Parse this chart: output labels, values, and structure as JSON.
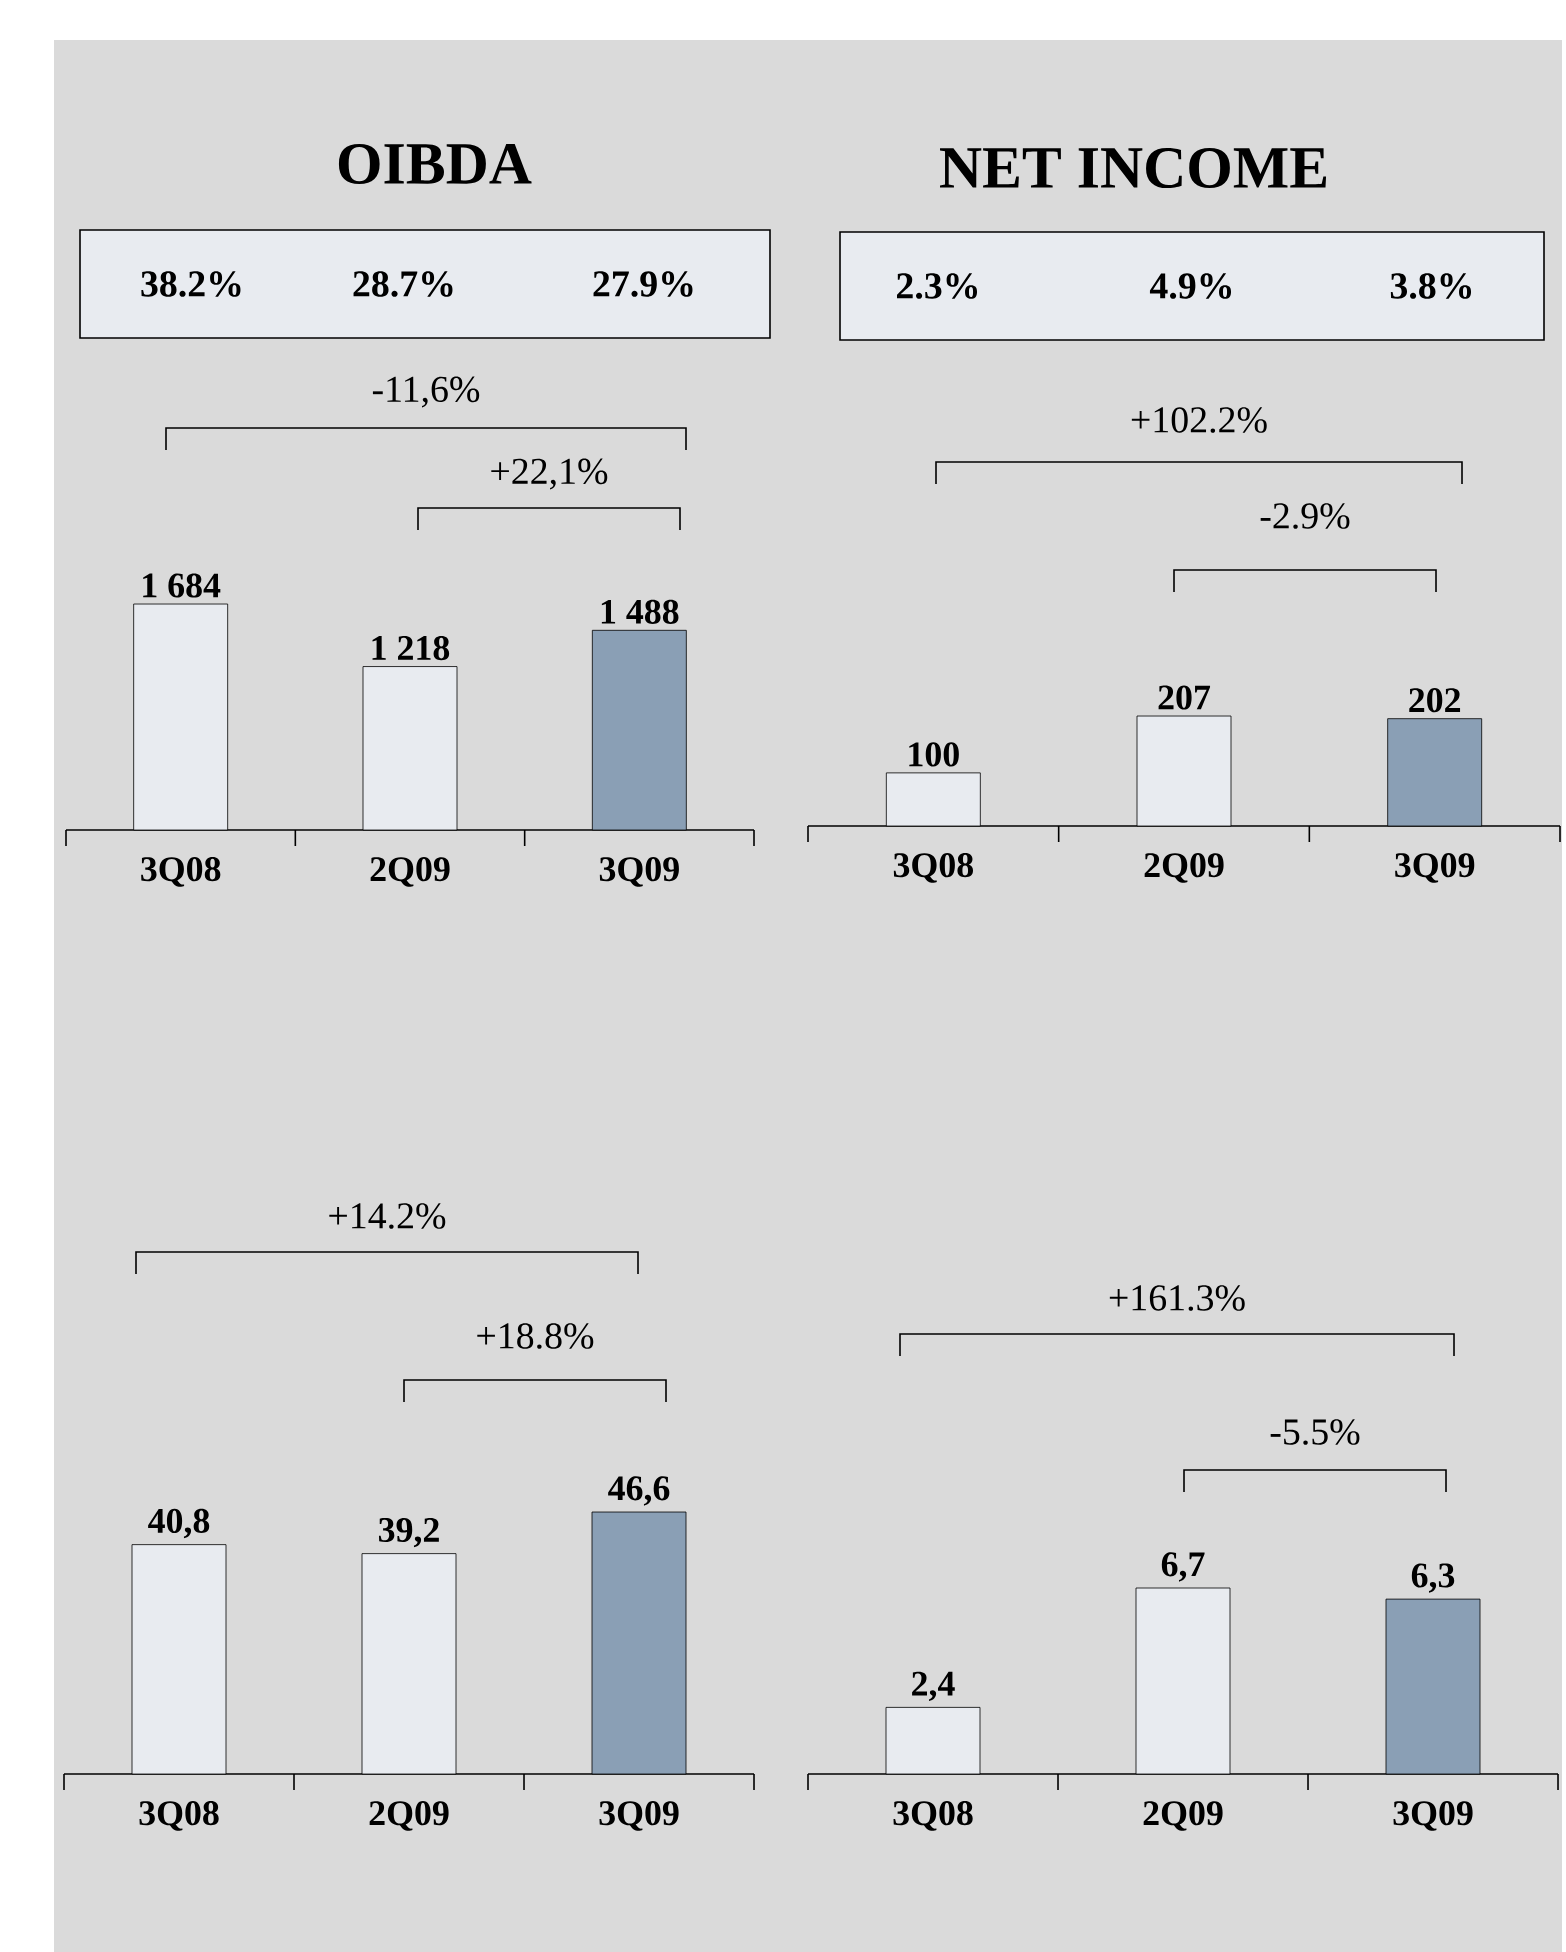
{
  "chart_data": [
    {
      "type": "bar",
      "title": "OIBDA",
      "categories": [
        "3Q08",
        "2Q09",
        "3Q09"
      ],
      "values": [
        1684,
        1218,
        1488
      ],
      "colors": [
        "#e8ebf0",
        "#e8ebf0",
        "#8a9fb5"
      ],
      "value_labels": [
        "1 684",
        "1 218",
        "1 488"
      ],
      "annotations": [
        "38.2%",
        "28.7%",
        "27.9%",
        "-11,6%",
        "+22,1%"
      ]
    },
    {
      "type": "bar",
      "title": "NET  INCOME",
      "categories": [
        "3Q08",
        "2Q09",
        "3Q09"
      ],
      "values": [
        100,
        207,
        202
      ],
      "colors": [
        "#e8ebf0",
        "#e8ebf0",
        "#8a9fb5"
      ],
      "value_labels": [
        "100",
        "207",
        "202"
      ],
      "annotations": [
        "2.3%",
        "4.9%",
        "3.8%",
        "+102.2%",
        "-2.9%"
      ]
    },
    {
      "type": "bar",
      "categories": [
        "3Q08",
        "2Q09",
        "3Q09"
      ],
      "values": [
        40.8,
        39.2,
        46.6
      ],
      "colors": [
        "#e8ebf0",
        "#e8ebf0",
        "#8a9fb5"
      ],
      "value_labels": [
        "40,8",
        "39,2",
        "46,6"
      ],
      "annotations": [
        "+14.2%",
        "+18.8%"
      ]
    },
    {
      "type": "bar",
      "categories": [
        "3Q08",
        "2Q09",
        "3Q09"
      ],
      "values": [
        2.4,
        6.7,
        6.3
      ],
      "colors": [
        "#e8ebf0",
        "#e8ebf0",
        "#8a9fb5"
      ],
      "value_labels": [
        "2,4",
        "6,7",
        "6,3"
      ],
      "annotations": [
        "+161.3%",
        "-5.5%"
      ]
    }
  ]
}
